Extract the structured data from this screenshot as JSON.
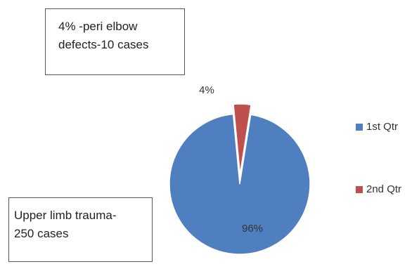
{
  "annotations": {
    "top": "4% -peri elbow\ndefects-10 cases",
    "bottom": "Upper limb trauma-\n250 cases"
  },
  "chart_data": {
    "type": "pie",
    "categories": [
      "1st Qtr",
      "2nd Qtr"
    ],
    "values": [
      96,
      4
    ],
    "data_labels": [
      "96%",
      "4%"
    ],
    "colors": [
      "#4F7FBF",
      "#C0504D"
    ],
    "exploded_slice": "2nd Qtr",
    "legend_position": "right"
  }
}
